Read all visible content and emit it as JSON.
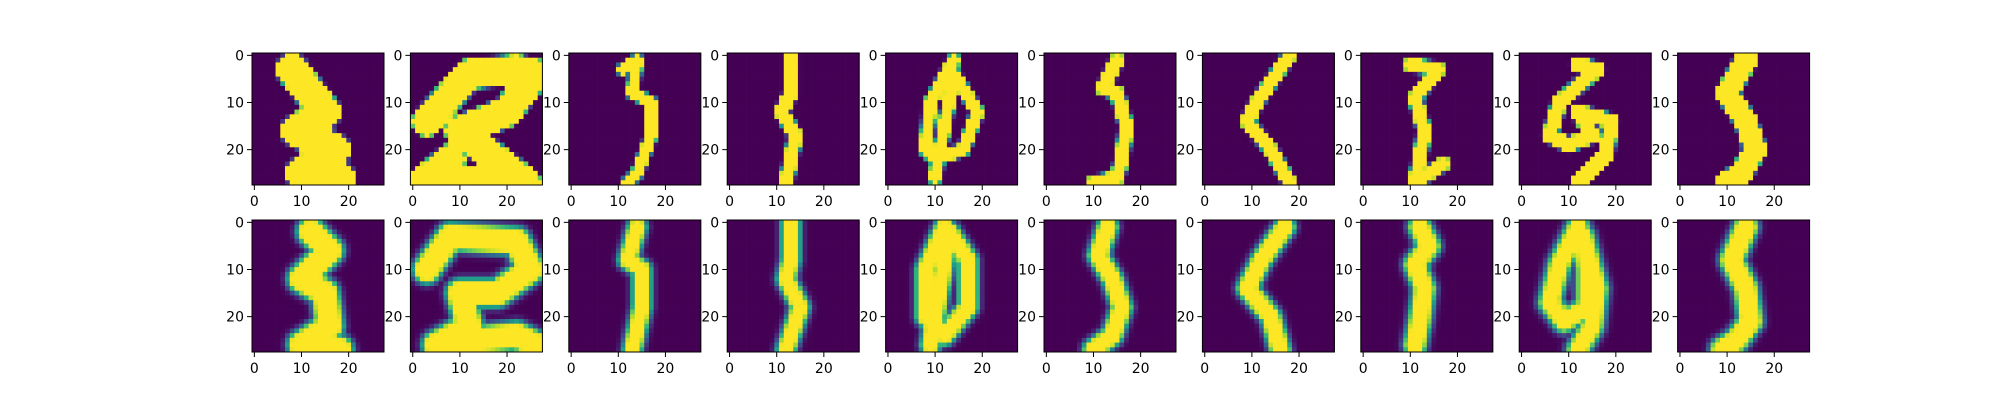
{
  "chart_data": {
    "type": "heatmap",
    "layout": {
      "rows": 2,
      "cols": 10
    },
    "image_size": [
      28,
      28
    ],
    "colormap": "viridis",
    "value_range": [
      0,
      1
    ],
    "xlim": [
      0,
      27
    ],
    "ylim": [
      27,
      0
    ],
    "x_ticks": [
      0,
      10,
      20
    ],
    "y_ticks": [
      0,
      10,
      20
    ],
    "x_tick_labels": [
      "0",
      "10",
      "20"
    ],
    "y_tick_labels": [
      "0",
      "10",
      "20"
    ],
    "rows": [
      {
        "name": "",
        "panels": [
          {
            "glyph": [
              [
                8,
                3
              ],
              [
                15,
                12
              ],
              [
                9,
                16
              ],
              [
                17,
                20
              ],
              [
                10,
                25
              ],
              [
                18,
                26
              ]
            ],
            "width": 3.2,
            "blur": 0.3
          },
          {
            "glyph": [
              [
                3,
                14
              ],
              [
                12,
                4
              ],
              [
                22,
                3
              ],
              [
                26,
                4
              ],
              [
                20,
                12
              ],
              [
                10,
                16
              ],
              [
                15,
                20
              ],
              [
                24,
                27
              ],
              [
                2,
                27
              ],
              [
                8,
                22
              ]
            ],
            "width": 3.0,
            "blur": 0.3
          },
          {
            "glyph": [
              [
                11,
                3
              ],
              [
                14,
                1
              ],
              [
                13,
                8
              ],
              [
                17,
                10
              ],
              [
                17,
                17
              ],
              [
                14,
                25
              ],
              [
                12,
                27
              ]
            ],
            "width": 1.1,
            "blur": 0.3
          },
          {
            "glyph": [
              [
                13,
                0
              ],
              [
                13,
                8
              ],
              [
                11,
                12
              ],
              [
                14,
                17
              ],
              [
                13,
                22
              ],
              [
                12,
                27
              ]
            ],
            "width": 1.3,
            "blur": 0.3
          },
          {
            "glyph": [
              [
                14,
                1
              ],
              [
                9,
                10
              ],
              [
                8,
                20
              ],
              [
                10,
                22
              ],
              [
                16,
                20
              ],
              [
                19,
                12
              ],
              [
                14,
                4
              ],
              [
                10,
                26
              ]
            ],
            "width": 1.2,
            "blur": 0.3
          },
          {
            "glyph": [
              [
                15,
                1
              ],
              [
                12,
                7
              ],
              [
                15,
                8
              ],
              [
                17,
                15
              ],
              [
                16,
                22
              ],
              [
                15,
                26
              ],
              [
                10,
                27
              ]
            ],
            "width": 1.3,
            "blur": 0.3
          },
          {
            "glyph": [
              [
                18,
                0
              ],
              [
                11,
                10
              ],
              [
                9,
                14
              ],
              [
                14,
                20
              ],
              [
                18,
                27
              ]
            ],
            "width": 1.3,
            "blur": 0.3
          },
          {
            "glyph": [
              [
                10,
                2
              ],
              [
                16,
                3
              ],
              [
                11,
                9
              ],
              [
                13,
                16
              ],
              [
                12,
                22
              ],
              [
                11,
                27
              ],
              [
                17,
                23
              ]
            ],
            "width": 1.3,
            "blur": 0.3
          },
          {
            "glyph": [
              [
                12,
                2
              ],
              [
                16,
                3
              ],
              [
                8,
                10
              ],
              [
                6,
                17
              ],
              [
                10,
                19
              ],
              [
                15,
                17
              ],
              [
                12,
                12
              ],
              [
                19,
                14
              ],
              [
                18,
                21
              ],
              [
                12,
                27
              ]
            ],
            "width": 1.4,
            "blur": 0.3
          },
          {
            "glyph": [
              [
                14,
                1
              ],
              [
                10,
                8
              ],
              [
                14,
                14
              ],
              [
                16,
                20
              ],
              [
                13,
                25
              ],
              [
                10,
                27
              ]
            ],
            "width": 2.2,
            "blur": 0.3
          }
        ]
      },
      {
        "name": "",
        "panels": [
          {
            "glyph": [
              [
                12,
                2
              ],
              [
                16,
                6
              ],
              [
                10,
                12
              ],
              [
                15,
                15
              ],
              [
                16,
                22
              ],
              [
                10,
                26
              ],
              [
                18,
                27
              ]
            ],
            "width": 2.0,
            "blur": 1.3
          },
          {
            "glyph": [
              [
                3,
                10
              ],
              [
                8,
                3
              ],
              [
                22,
                4
              ],
              [
                25,
                10
              ],
              [
                18,
                15
              ],
              [
                10,
                15
              ],
              [
                12,
                22
              ],
              [
                5,
                26
              ],
              [
                22,
                24
              ],
              [
                26,
                26
              ]
            ],
            "width": 2.0,
            "blur": 1.3
          },
          {
            "glyph": [
              [
                14,
                1
              ],
              [
                12,
                8
              ],
              [
                15,
                10
              ],
              [
                15,
                18
              ],
              [
                13,
                27
              ]
            ],
            "width": 1.1,
            "blur": 1.2
          },
          {
            "glyph": [
              [
                13,
                0
              ],
              [
                13,
                8
              ],
              [
                12,
                12
              ],
              [
                15,
                18
              ],
              [
                13,
                24
              ],
              [
                12,
                27
              ]
            ],
            "width": 1.1,
            "blur": 1.2
          },
          {
            "glyph": [
              [
                12,
                1
              ],
              [
                8,
                10
              ],
              [
                8,
                20
              ],
              [
                12,
                24
              ],
              [
                17,
                18
              ],
              [
                17,
                8
              ],
              [
                13,
                2
              ],
              [
                9,
                26
              ]
            ],
            "width": 1.2,
            "blur": 1.2
          },
          {
            "glyph": [
              [
                13,
                1
              ],
              [
                11,
                7
              ],
              [
                14,
                12
              ],
              [
                16,
                18
              ],
              [
                14,
                24
              ],
              [
                10,
                27
              ]
            ],
            "width": 1.3,
            "blur": 1.2
          },
          {
            "glyph": [
              [
                17,
                1
              ],
              [
                12,
                8
              ],
              [
                9,
                14
              ],
              [
                14,
                20
              ],
              [
                16,
                27
              ]
            ],
            "width": 1.3,
            "blur": 1.2
          },
          {
            "glyph": [
              [
                12,
                1
              ],
              [
                14,
                5
              ],
              [
                11,
                9
              ],
              [
                13,
                14
              ],
              [
                12,
                21
              ],
              [
                11,
                26
              ]
            ],
            "width": 1.4,
            "blur": 1.3
          },
          {
            "glyph": [
              [
                12,
                1
              ],
              [
                8,
                9
              ],
              [
                6,
                17
              ],
              [
                9,
                21
              ],
              [
                14,
                18
              ],
              [
                14,
                10
              ],
              [
                13,
                3
              ],
              [
                16,
                14
              ],
              [
                15,
                22
              ],
              [
                12,
                27
              ]
            ],
            "width": 1.3,
            "blur": 1.4
          },
          {
            "glyph": [
              [
                14,
                1
              ],
              [
                11,
                8
              ],
              [
                14,
                14
              ],
              [
                15,
                21
              ],
              [
                12,
                25
              ],
              [
                9,
                27
              ]
            ],
            "width": 1.6,
            "blur": 1.3
          }
        ]
      }
    ]
  }
}
